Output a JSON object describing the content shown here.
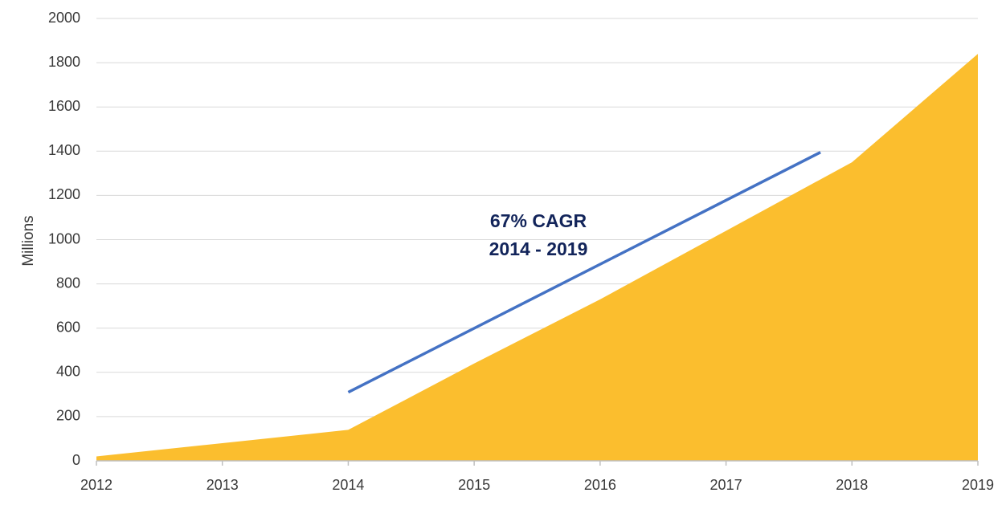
{
  "chart_data": {
    "type": "area",
    "title": "",
    "xlabel": "",
    "ylabel": "Millions",
    "x": [
      "2012",
      "2013",
      "2014",
      "2015",
      "2016",
      "2017",
      "2018",
      "2019"
    ],
    "y_ticks": [
      "0",
      "200",
      "400",
      "600",
      "800",
      "1000",
      "1200",
      "1400",
      "1600",
      "1800",
      "2000"
    ],
    "ylim": [
      0,
      2000
    ],
    "grid": "horizontal",
    "legend": "none",
    "series": [
      {
        "values": [
          20,
          80,
          140,
          440,
          730,
          1040,
          1350,
          1840
        ],
        "color": "#FBBE2E"
      }
    ],
    "trend_line": {
      "x_start": 2014.0,
      "y_start": 310,
      "x_end": 2017.75,
      "y_end": 1395,
      "color": "#4472C4"
    },
    "annotation": {
      "line1": "67% CAGR",
      "line2": "2014 - 2019",
      "color": "#12245a"
    }
  }
}
